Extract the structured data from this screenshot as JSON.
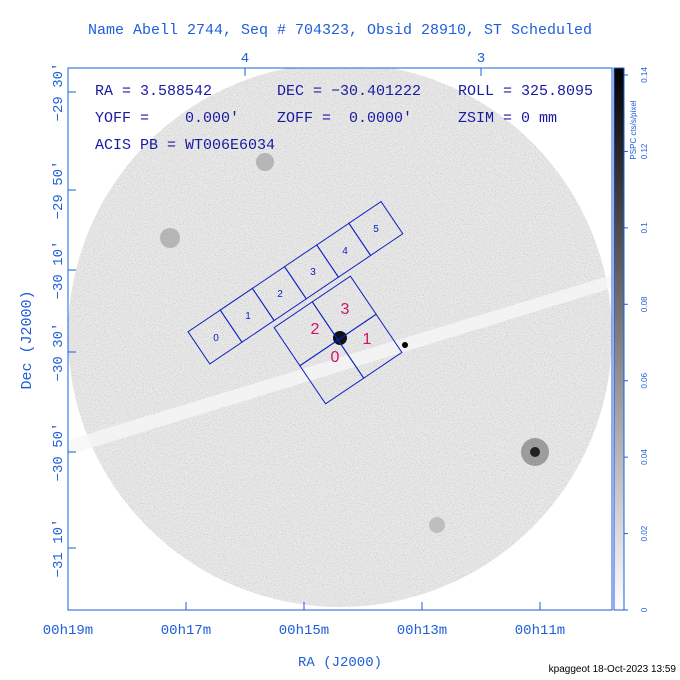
{
  "title": "Name Abell 2744, Seq # 704323, Obsid 28910, ST Scheduled",
  "info": [
    "RA = 3.588542",
    "DEC = −30.401222",
    "ROLL = 325.8095",
    "YOFF =    0.000'",
    "ZOFF =  0.0000'",
    "ZSIM = 0 mm",
    "ACIS PB = WT006E6034"
  ],
  "x_axis": {
    "label": "RA (J2000)",
    "ticks": [
      "00h19m",
      "00h17m",
      "00h15m",
      "00h13m",
      "00h11m"
    ],
    "top_ticks": [
      "4",
      "3"
    ]
  },
  "y_axis": {
    "label": "Dec (J2000)",
    "ticks": [
      "−29 30'",
      "−29 50'",
      "−30 10'",
      "−30 30'",
      "−30 50'",
      "−31 10'"
    ]
  },
  "colorbar": {
    "label": "PSPC cts/s/pixel",
    "ticks": [
      "0",
      "0.02",
      "0.04",
      "0.06",
      "0.08",
      "0.1",
      "0.12",
      "0.14"
    ]
  },
  "chips_s": [
    "0",
    "1",
    "2",
    "3",
    "4",
    "5"
  ],
  "chips_i": [
    "0",
    "1",
    "2",
    "3"
  ],
  "footer": "kpaggeot 18-Oct-2023 13:59"
}
